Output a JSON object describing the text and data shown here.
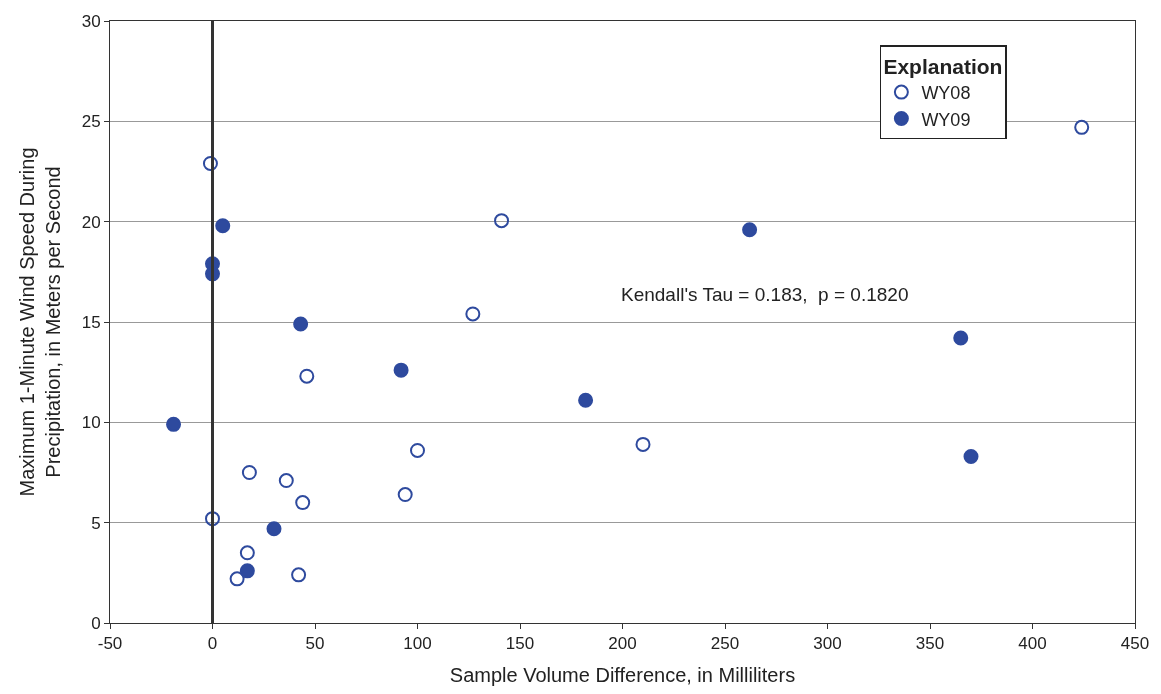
{
  "chart_data": {
    "type": "scatter",
    "xlabel": "Sample Volume Difference, in Milliliters",
    "ylabel": "Maximum 1-Minute Wind Speed During\nPrecipitation, in Meters per Second",
    "legend_title": "Explanation",
    "xlim": [
      -50,
      450
    ],
    "xticks": [
      -50,
      0,
      50,
      100,
      150,
      200,
      250,
      300,
      350,
      400,
      450
    ],
    "ylim": [
      0,
      30
    ],
    "yticks": [
      0,
      5,
      10,
      15,
      20,
      25,
      30
    ],
    "grid": "y",
    "legend": "top right",
    "ref_lines": [
      {
        "axis": "x",
        "value": 0,
        "color": "#333333"
      }
    ],
    "annotations": [
      "Kendall's Tau = 0.183,  p = 0.1820"
    ],
    "series": [
      {
        "name": "WY08",
        "color": "#2e4a9e",
        "marker": "circle-open",
        "x": [
          -1,
          424,
          141,
          127,
          46,
          100,
          210,
          18,
          36,
          44,
          94,
          0,
          17,
          12,
          42
        ],
        "values": [
          22.9,
          24.7,
          20.05,
          15.4,
          12.3,
          8.6,
          8.9,
          7.5,
          7.1,
          6.0,
          6.4,
          5.2,
          3.5,
          2.2,
          2.4
        ]
      },
      {
        "name": "WY09",
        "color": "#2e4a9e",
        "marker": "circle",
        "x": [
          5,
          0,
          0,
          -19,
          43,
          92,
          182,
          262,
          365,
          370,
          30,
          17
        ],
        "values": [
          19.8,
          17.9,
          17.4,
          9.9,
          14.9,
          12.6,
          11.1,
          19.6,
          14.2,
          8.3,
          4.7,
          2.6
        ]
      }
    ]
  }
}
